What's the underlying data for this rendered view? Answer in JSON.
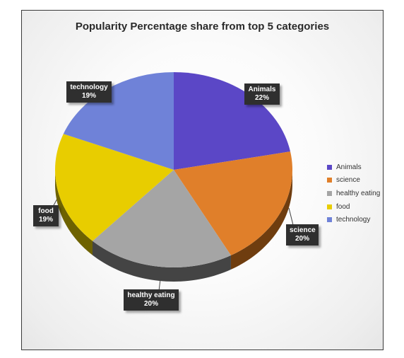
{
  "chart_data": {
    "type": "pie",
    "title": "Popularity Percentage share from top 5 categories",
    "categories": [
      "Animals",
      "science",
      "healthy eating",
      "food",
      "technology"
    ],
    "values": [
      22,
      20,
      20,
      19,
      19
    ],
    "value_labels": [
      "22%",
      "20%",
      "20%",
      "19%",
      "19%"
    ],
    "colors": [
      "#5b47c6",
      "#e07f2a",
      "#a5a5a5",
      "#e8cd00",
      "#6f82d8"
    ],
    "side_colors": [
      "#3a2d82",
      "#6f3d0f",
      "#444444",
      "#6e6200",
      "#3b4680"
    ],
    "legend_position": "right",
    "style": "3d"
  }
}
